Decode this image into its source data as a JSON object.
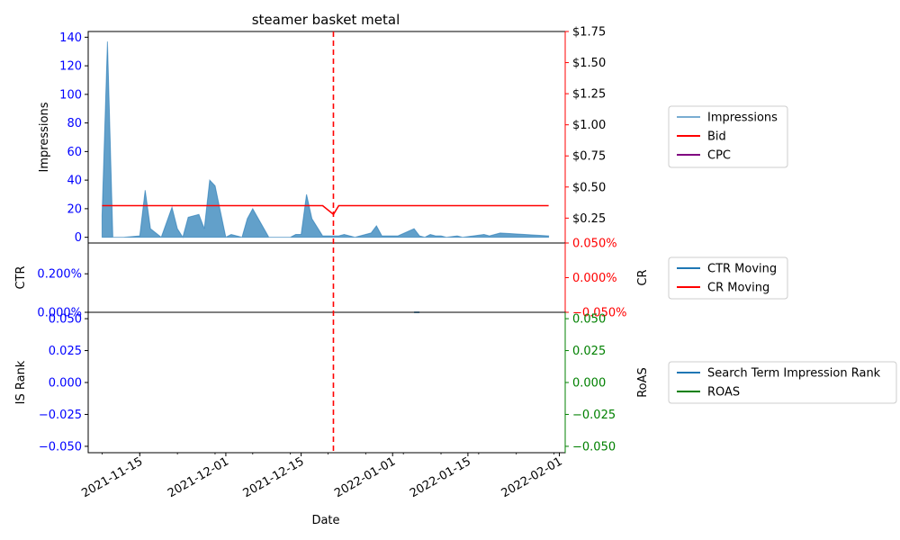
{
  "chart_data": {
    "title": "steamer basket metal",
    "xlabel": "Date",
    "x_ticks": [
      "2021-11-15",
      "2021-12-01",
      "2021-12-15",
      "2022-01-01",
      "2022-01-15",
      "2022-02-01"
    ],
    "marker_date": "2021-12-21",
    "panels": [
      {
        "id": "impressions",
        "type": "area",
        "ylabel_left": "Impressions",
        "ylabel_right": "",
        "ylim_left": [
          -4,
          144
        ],
        "ylim_right": [
          0.05,
          1.75
        ],
        "left_ticks": [
          0,
          20,
          40,
          60,
          80,
          100,
          120,
          140
        ],
        "right_ticks": [
          0.25,
          0.5,
          0.75,
          1.0,
          1.25,
          1.5,
          1.75
        ],
        "right_tick_labels": [
          "$0.25",
          "$0.50",
          "$0.75",
          "$1.00",
          "$1.25",
          "$1.50",
          "$1.75"
        ],
        "series": [
          {
            "name": "Impressions",
            "axis": "left",
            "color": "#1f77b4",
            "kind": "area",
            "points": [
              [
                "2021-11-08",
                15
              ],
              [
                "2021-11-09",
                137
              ],
              [
                "2021-11-10",
                0
              ],
              [
                "2021-11-12",
                0
              ],
              [
                "2021-11-15",
                1
              ],
              [
                "2021-11-16",
                33
              ],
              [
                "2021-11-17",
                6
              ],
              [
                "2021-11-19",
                0
              ],
              [
                "2021-11-21",
                21
              ],
              [
                "2021-11-22",
                6
              ],
              [
                "2021-11-23",
                0
              ],
              [
                "2021-11-24",
                14
              ],
              [
                "2021-11-26",
                16
              ],
              [
                "2021-11-27",
                6
              ],
              [
                "2021-11-28",
                40
              ],
              [
                "2021-11-29",
                36
              ],
              [
                "2021-12-01",
                0
              ],
              [
                "2021-12-02",
                2
              ],
              [
                "2021-12-04",
                0
              ],
              [
                "2021-12-05",
                13
              ],
              [
                "2021-12-06",
                20
              ],
              [
                "2021-12-09",
                0
              ],
              [
                "2021-12-13",
                0
              ],
              [
                "2021-12-14",
                2
              ],
              [
                "2021-12-15",
                2
              ],
              [
                "2021-12-16",
                30
              ],
              [
                "2021-12-17",
                13
              ],
              [
                "2021-12-19",
                1
              ],
              [
                "2021-12-22",
                1
              ],
              [
                "2021-12-23",
                2
              ],
              [
                "2021-12-25",
                0
              ],
              [
                "2021-12-28",
                3
              ],
              [
                "2021-12-29",
                8
              ],
              [
                "2021-12-30",
                1
              ],
              [
                "2022-01-02",
                1
              ],
              [
                "2022-01-05",
                6
              ],
              [
                "2022-01-06",
                1
              ],
              [
                "2022-01-07",
                0
              ],
              [
                "2022-01-08",
                2
              ],
              [
                "2022-01-09",
                1
              ],
              [
                "2022-01-10",
                1
              ],
              [
                "2022-01-11",
                0
              ],
              [
                "2022-01-13",
                1
              ],
              [
                "2022-01-14",
                0
              ],
              [
                "2022-01-16",
                1
              ],
              [
                "2022-01-18",
                2
              ],
              [
                "2022-01-19",
                1
              ],
              [
                "2022-01-21",
                3
              ],
              [
                "2022-01-30",
                1
              ]
            ]
          },
          {
            "name": "Bid",
            "axis": "right",
            "color": "#ff0000",
            "kind": "line",
            "points": [
              [
                "2021-11-08",
                0.35
              ],
              [
                "2021-12-19",
                0.35
              ],
              [
                "2021-12-21",
                0.28
              ],
              [
                "2021-12-22",
                0.35
              ],
              [
                "2022-01-30",
                0.35
              ]
            ]
          },
          {
            "name": "CPC",
            "axis": "right",
            "color": "#800080",
            "kind": "line",
            "points": []
          }
        ]
      },
      {
        "id": "ctr",
        "type": "line",
        "ylabel_left": "CTR",
        "ylabel_right": "CR",
        "ylim_left": [
          0,
          0.0036
        ],
        "ylim_right": [
          -0.0005,
          0.0005
        ],
        "left_ticks": [
          0,
          0.002
        ],
        "left_tick_labels": [
          "0.000%",
          "0.200%"
        ],
        "right_ticks": [
          -0.0005,
          0,
          0.0005
        ],
        "right_tick_labels": [
          "−0.050%",
          "0.000%",
          "0.050%"
        ],
        "series": [
          {
            "name": "CTR Moving",
            "axis": "left",
            "color": "#1f77b4",
            "kind": "line",
            "points": [
              [
                "2022-01-05",
                0
              ],
              [
                "2022-01-06",
                0
              ]
            ]
          },
          {
            "name": "CR Moving",
            "axis": "right",
            "color": "#ff0000",
            "kind": "line",
            "points": []
          }
        ]
      },
      {
        "id": "isrank",
        "type": "line",
        "ylabel_left": "IS Rank",
        "ylabel_right": "RoAS",
        "ylim_left": [
          -0.055,
          0.055
        ],
        "ylim_right": [
          -0.055,
          0.055
        ],
        "left_ticks": [
          -0.05,
          -0.025,
          0,
          0.025,
          0.05
        ],
        "left_tick_labels": [
          "−0.050",
          "−0.025",
          "0.000",
          "0.025",
          "0.050"
        ],
        "right_ticks": [
          -0.05,
          -0.025,
          0,
          0.025,
          0.05
        ],
        "right_tick_labels": [
          "−0.050",
          "−0.025",
          "0.000",
          "0.025",
          "0.050"
        ],
        "series": [
          {
            "name": "Search Term Impression Rank",
            "axis": "left",
            "color": "#1f77b4",
            "kind": "line",
            "points": []
          },
          {
            "name": "ROAS",
            "axis": "right",
            "color": "#008000",
            "kind": "line",
            "points": []
          }
        ]
      }
    ],
    "colors": {
      "left_axis": "#0000ff",
      "impr_right_axis": "#ff0000",
      "ctr_right_axis": "#ff0000",
      "isrank_right_axis": "#008000",
      "marker": "#ff0000"
    },
    "legend_placement": "right"
  }
}
